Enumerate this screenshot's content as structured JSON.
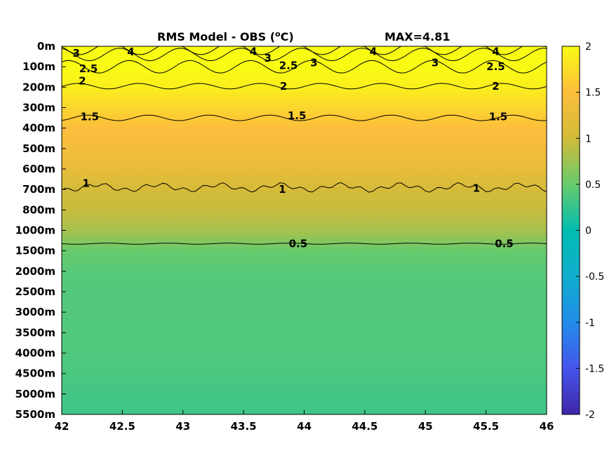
{
  "chart_data": {
    "type": "heatmap",
    "title": "RMS Model - OBS (",
    "title_unit_sup": "o",
    "title_unit_suffix": "C)",
    "max_label": "MAX=4.81",
    "x_ticks": [
      "42",
      "42.5",
      "43",
      "43.5",
      "44",
      "44.5",
      "45",
      "45.5",
      "46"
    ],
    "x_values": [
      42,
      42.5,
      43,
      43.5,
      44,
      44.5,
      45,
      45.5,
      46
    ],
    "xlim": [
      42,
      46
    ],
    "y_ticks": [
      "0m",
      "100m",
      "200m",
      "300m",
      "400m",
      "500m",
      "600m",
      "700m",
      "800m",
      "1000m",
      "1500m",
      "2000m",
      "2500m",
      "3000m",
      "3500m",
      "4000m",
      "4500m",
      "5000m",
      "5500m"
    ],
    "colorbar": {
      "range": [
        -2,
        2
      ],
      "ticks": [
        "2",
        "1.5",
        "1",
        "0.5",
        "0",
        "-0.5",
        "-1",
        "-1.5",
        "-2"
      ],
      "tick_values": [
        2,
        1.5,
        1,
        0.5,
        0,
        -0.5,
        -1,
        -1.5,
        -2
      ],
      "colormap": "parula"
    },
    "depth_profile": [
      2.4,
      2.1,
      1.9,
      1.7,
      1.5,
      1.4,
      1.25,
      1.05,
      0.95,
      0.8,
      0.5,
      0.42,
      0.4,
      0.4,
      0.39,
      0.38,
      0.36,
      0.32,
      0.3
    ],
    "contours": [
      {
        "level": 0.5,
        "label": "0.5",
        "depth_index": 9.65
      },
      {
        "level": 1,
        "label": "1",
        "depth_index": 6.9
      },
      {
        "level": 1.5,
        "label": "1.5",
        "depth_index": 3.5
      },
      {
        "level": 2,
        "label": "2",
        "depth_index": 1.95
      },
      {
        "level": 2.5,
        "label": "2.5",
        "depth_index": 1.0
      },
      {
        "level": 3,
        "label": "3",
        "depth_index": 0.4
      },
      {
        "level": 4,
        "label": "4",
        "depth_index": 0.1
      }
    ],
    "contour_labels": [
      {
        "text": "3",
        "x": 42.12,
        "y": 0.35
      },
      {
        "text": "4",
        "x": 42.57,
        "y": 0.28
      },
      {
        "text": "2.5",
        "x": 42.22,
        "y": 1.1
      },
      {
        "text": "2",
        "x": 42.17,
        "y": 1.7
      },
      {
        "text": "4",
        "x": 43.58,
        "y": 0.25
      },
      {
        "text": "3",
        "x": 43.7,
        "y": 0.58
      },
      {
        "text": "2.5",
        "x": 43.87,
        "y": 0.95
      },
      {
        "text": "3",
        "x": 44.08,
        "y": 0.8
      },
      {
        "text": "4",
        "x": 44.57,
        "y": 0.25
      },
      {
        "text": "3",
        "x": 45.08,
        "y": 0.8
      },
      {
        "text": "4",
        "x": 45.58,
        "y": 0.25
      },
      {
        "text": "2.5",
        "x": 45.58,
        "y": 1.0
      },
      {
        "text": "2",
        "x": 43.83,
        "y": 1.95
      },
      {
        "text": "2",
        "x": 45.58,
        "y": 1.95
      },
      {
        "text": "1.5",
        "x": 42.23,
        "y": 3.45
      },
      {
        "text": "1.5",
        "x": 43.94,
        "y": 3.4
      },
      {
        "text": "1.5",
        "x": 45.6,
        "y": 3.45
      },
      {
        "text": "1",
        "x": 42.2,
        "y": 6.7
      },
      {
        "text": "1",
        "x": 43.82,
        "y": 7.0
      },
      {
        "text": "1",
        "x": 45.42,
        "y": 6.95
      },
      {
        "text": "0.5",
        "x": 43.95,
        "y": 9.65
      },
      {
        "text": "0.5",
        "x": 45.65,
        "y": 9.65
      }
    ]
  }
}
